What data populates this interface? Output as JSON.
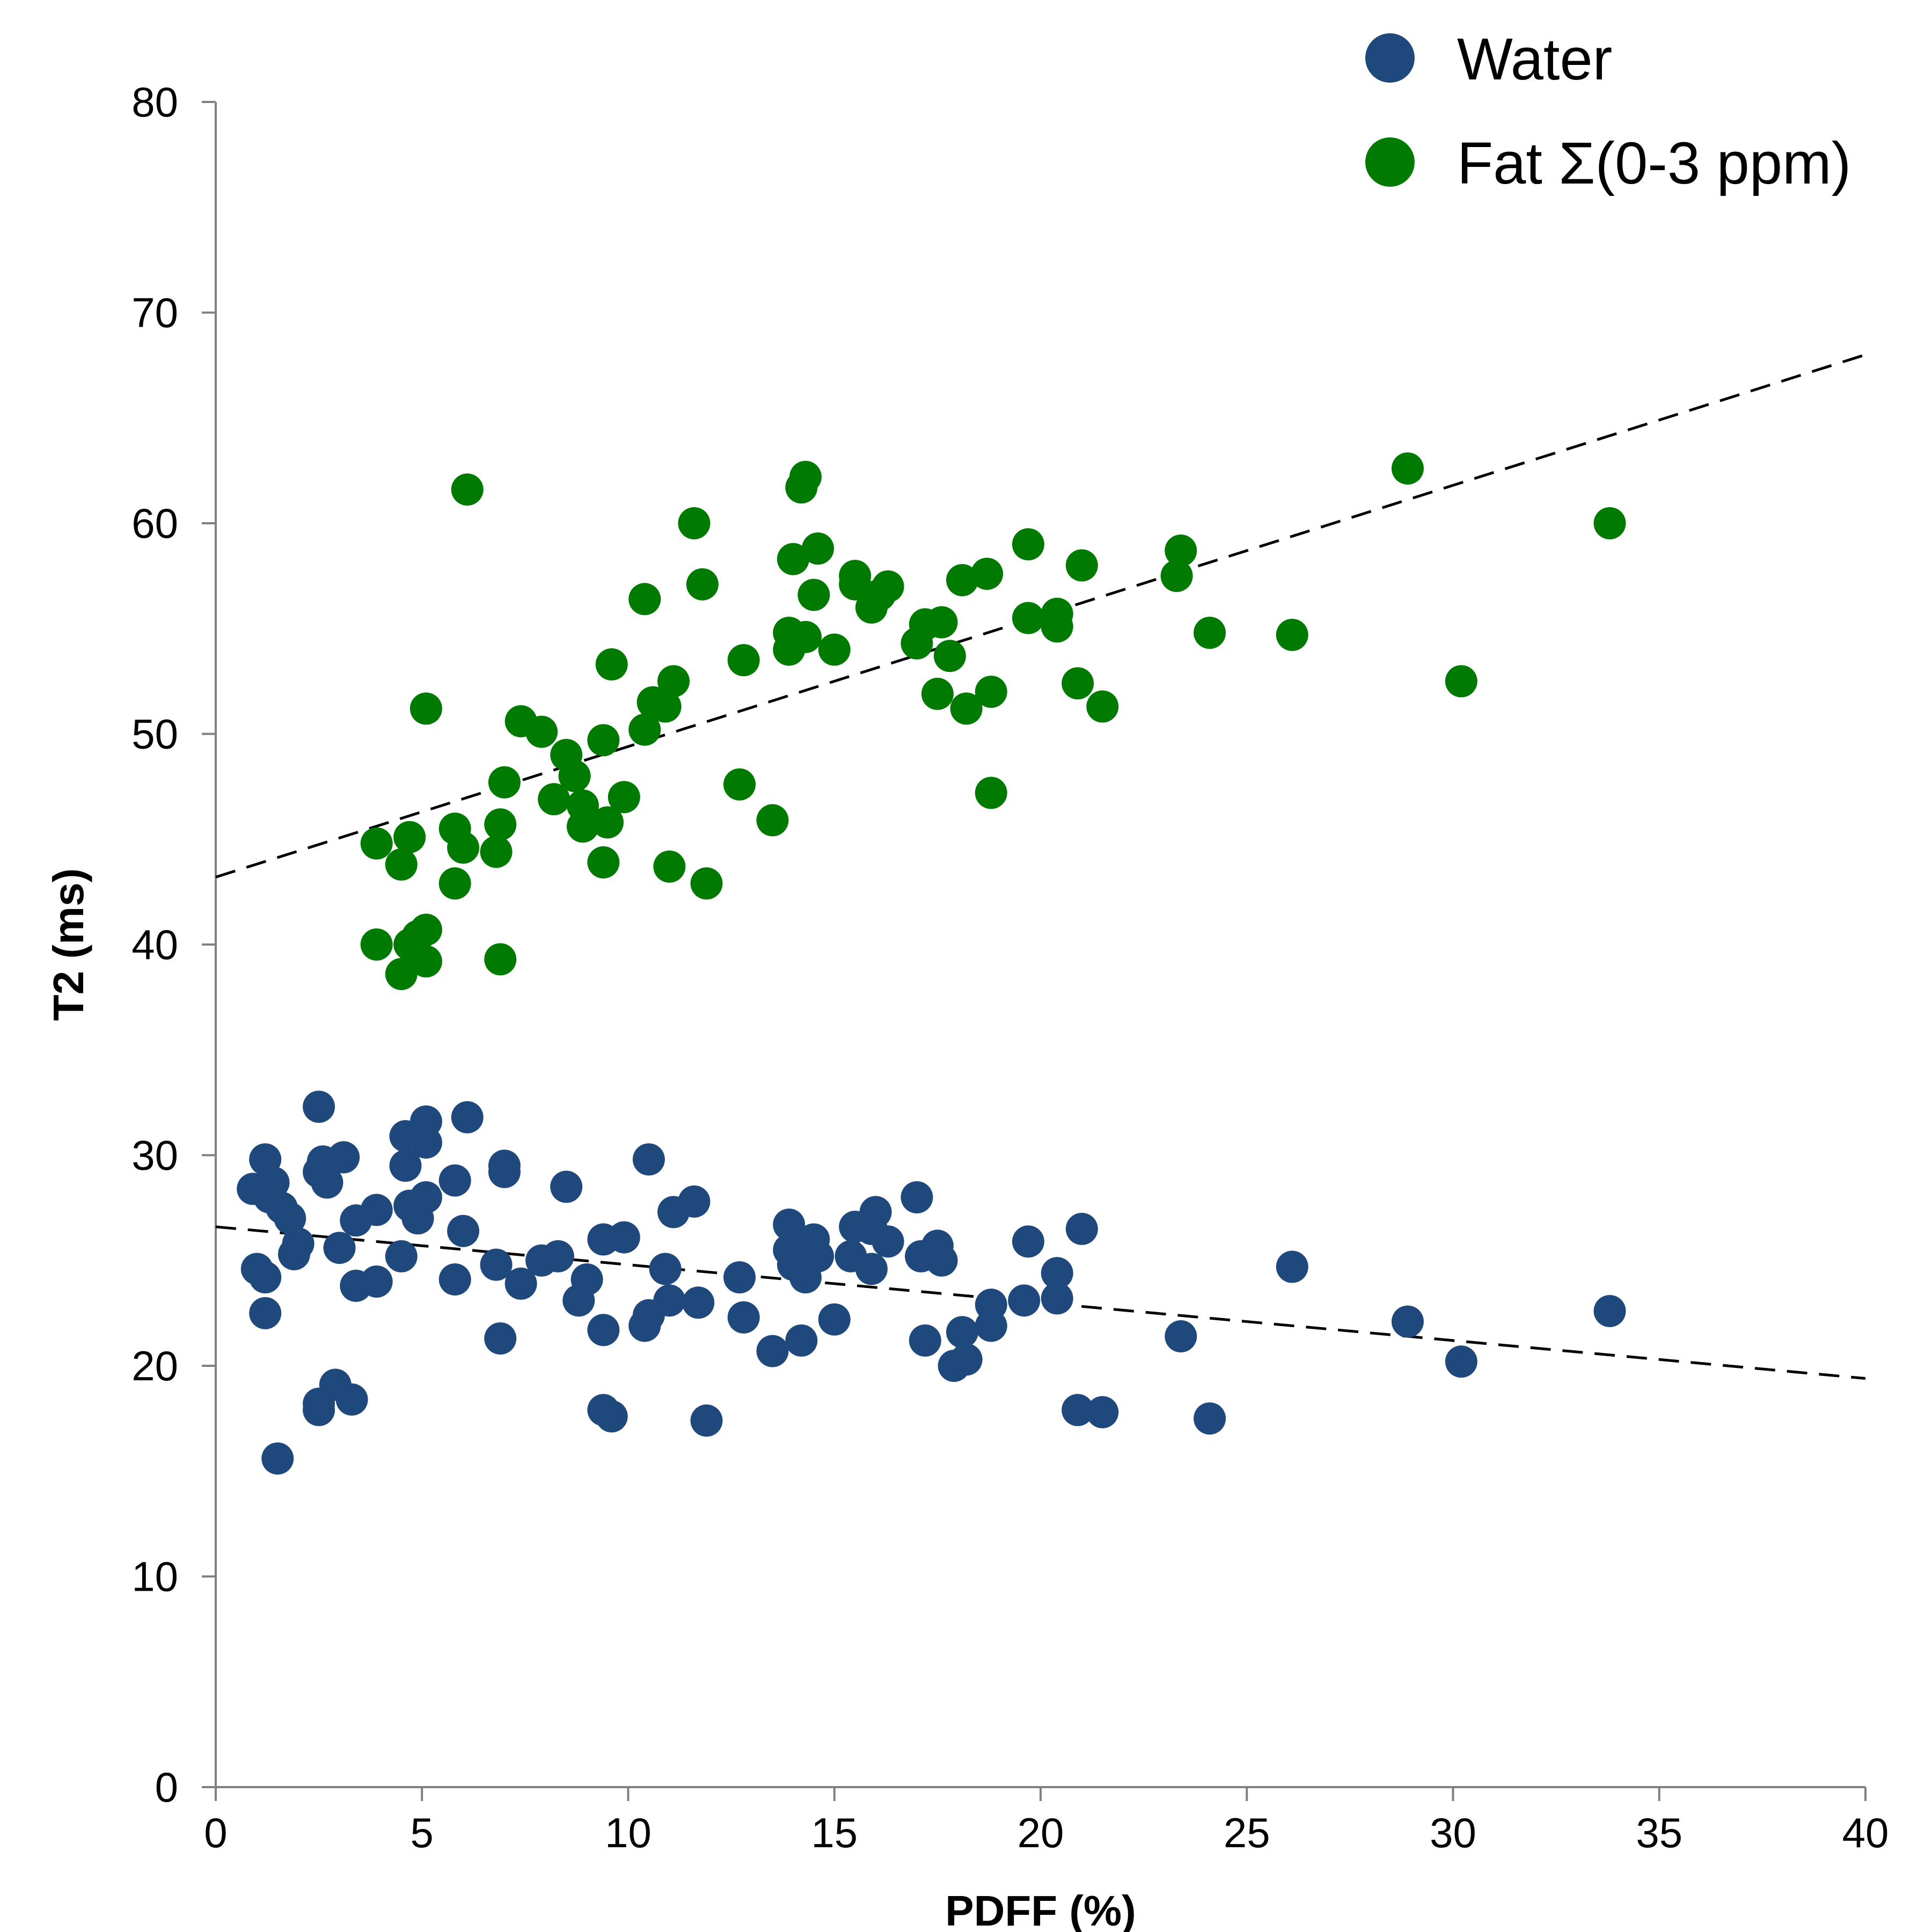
{
  "chart_data": {
    "type": "scatter",
    "title": "",
    "xlabel": "PDFF (%)",
    "ylabel": "T2 (ms)",
    "xlim": [
      0,
      40
    ],
    "ylim": [
      0,
      80
    ],
    "xticks": [
      0,
      5,
      10,
      15,
      20,
      25,
      30,
      35,
      40
    ],
    "yticks": [
      0,
      10,
      20,
      30,
      40,
      50,
      60,
      70,
      80
    ],
    "grid": false,
    "legend_position": "top-right",
    "series": [
      {
        "name": "Water",
        "color": "#1f497d",
        "points": [
          [
            0.9,
            28.4
          ],
          [
            1.2,
            29.8
          ],
          [
            1.4,
            28.7
          ],
          [
            1.6,
            27.5
          ],
          [
            1.8,
            27.0
          ],
          [
            1.3,
            28.0
          ],
          [
            1.0,
            24.6
          ],
          [
            1.2,
            24.2
          ],
          [
            1.9,
            25.3
          ],
          [
            2.0,
            25.8
          ],
          [
            1.2,
            22.5
          ],
          [
            1.5,
            15.6
          ],
          [
            2.5,
            32.3
          ],
          [
            2.6,
            29.7
          ],
          [
            2.5,
            29.2
          ],
          [
            2.7,
            28.7
          ],
          [
            3.1,
            29.9
          ],
          [
            3.0,
            25.6
          ],
          [
            3.4,
            26.9
          ],
          [
            3.9,
            27.4
          ],
          [
            3.4,
            23.8
          ],
          [
            3.9,
            24.0
          ],
          [
            2.9,
            19.1
          ],
          [
            2.5,
            18.2
          ],
          [
            2.5,
            17.9
          ],
          [
            3.3,
            18.4
          ],
          [
            4.6,
            30.9
          ],
          [
            5.1,
            31.6
          ],
          [
            5.1,
            30.6
          ],
          [
            4.6,
            29.5
          ],
          [
            4.7,
            27.6
          ],
          [
            5.1,
            28.0
          ],
          [
            4.9,
            27.0
          ],
          [
            4.5,
            25.2
          ],
          [
            5.8,
            28.8
          ],
          [
            6.1,
            31.8
          ],
          [
            6.0,
            26.4
          ],
          [
            5.8,
            24.1
          ],
          [
            7.0,
            29.5
          ],
          [
            7.0,
            29.2
          ],
          [
            6.8,
            24.8
          ],
          [
            7.4,
            23.9
          ],
          [
            6.9,
            21.3
          ],
          [
            7.9,
            25.0
          ],
          [
            8.3,
            25.2
          ],
          [
            8.5,
            28.5
          ],
          [
            9.0,
            24.1
          ],
          [
            8.8,
            23.1
          ],
          [
            9.4,
            26.0
          ],
          [
            9.9,
            26.1
          ],
          [
            9.4,
            21.7
          ],
          [
            9.4,
            17.9
          ],
          [
            9.6,
            17.6
          ],
          [
            10.5,
            29.8
          ],
          [
            10.9,
            24.6
          ],
          [
            10.5,
            22.4
          ],
          [
            10.4,
            21.9
          ],
          [
            11.0,
            23.1
          ],
          [
            11.1,
            27.3
          ],
          [
            11.6,
            27.8
          ],
          [
            11.7,
            23.0
          ],
          [
            11.9,
            17.4
          ],
          [
            12.7,
            24.2
          ],
          [
            12.8,
            22.3
          ],
          [
            13.5,
            20.7
          ],
          [
            13.9,
            26.7
          ],
          [
            13.9,
            25.5
          ],
          [
            14.0,
            24.8
          ],
          [
            14.3,
            24.2
          ],
          [
            14.5,
            26.0
          ],
          [
            14.6,
            25.2
          ],
          [
            14.2,
            21.2
          ],
          [
            15.5,
            26.6
          ],
          [
            15.4,
            25.2
          ],
          [
            15.9,
            24.6
          ],
          [
            16.0,
            27.3
          ],
          [
            16.3,
            25.9
          ],
          [
            15.9,
            26.5
          ],
          [
            15.0,
            22.2
          ],
          [
            17.0,
            28.0
          ],
          [
            17.1,
            25.2
          ],
          [
            17.5,
            25.7
          ],
          [
            17.6,
            25.0
          ],
          [
            17.2,
            21.2
          ],
          [
            17.9,
            20.0
          ],
          [
            18.2,
            20.3
          ],
          [
            18.1,
            21.6
          ],
          [
            18.8,
            22.9
          ],
          [
            18.8,
            21.9
          ],
          [
            19.7,
            25.9
          ],
          [
            19.6,
            23.1
          ],
          [
            20.4,
            24.4
          ],
          [
            20.4,
            23.2
          ],
          [
            21.0,
            26.5
          ],
          [
            20.9,
            17.9
          ],
          [
            21.5,
            17.8
          ],
          [
            23.4,
            21.4
          ],
          [
            24.1,
            17.5
          ],
          [
            26.1,
            24.7
          ],
          [
            28.9,
            22.1
          ],
          [
            30.2,
            20.2
          ],
          [
            33.8,
            22.6
          ]
        ],
        "trendline": {
          "x": [
            0,
            40
          ],
          "y": [
            26.6,
            19.4
          ]
        }
      },
      {
        "name": "Fat Σ(0-3 ppm)",
        "color": "#007a00",
        "points": [
          [
            3.9,
            44.8
          ],
          [
            3.9,
            40.0
          ],
          [
            4.5,
            43.8
          ],
          [
            4.7,
            45.1
          ],
          [
            4.7,
            40.0
          ],
          [
            4.5,
            38.6
          ],
          [
            4.9,
            40.4
          ],
          [
            5.1,
            40.7
          ],
          [
            5.1,
            39.2
          ],
          [
            5.1,
            51.2
          ],
          [
            5.8,
            45.5
          ],
          [
            6.0,
            44.6
          ],
          [
            5.8,
            42.9
          ],
          [
            6.1,
            61.6
          ],
          [
            7.0,
            47.7
          ],
          [
            6.9,
            45.7
          ],
          [
            6.8,
            44.4
          ],
          [
            6.9,
            39.3
          ],
          [
            7.4,
            50.6
          ],
          [
            7.9,
            50.1
          ],
          [
            8.2,
            46.9
          ],
          [
            8.5,
            49.0
          ],
          [
            8.7,
            48.0
          ],
          [
            8.9,
            46.6
          ],
          [
            8.9,
            45.6
          ],
          [
            9.4,
            49.7
          ],
          [
            9.5,
            45.8
          ],
          [
            9.4,
            43.9
          ],
          [
            9.6,
            53.3
          ],
          [
            9.9,
            47.0
          ],
          [
            10.4,
            50.2
          ],
          [
            10.4,
            56.4
          ],
          [
            10.6,
            51.5
          ],
          [
            10.9,
            51.3
          ],
          [
            11.1,
            52.5
          ],
          [
            11.0,
            43.7
          ],
          [
            11.6,
            60.0
          ],
          [
            11.8,
            57.1
          ],
          [
            11.9,
            42.9
          ],
          [
            12.8,
            53.5
          ],
          [
            12.7,
            47.6
          ],
          [
            13.5,
            45.9
          ],
          [
            14.0,
            58.3
          ],
          [
            13.9,
            54.8
          ],
          [
            13.9,
            54.0
          ],
          [
            14.3,
            54.6
          ],
          [
            14.2,
            61.7
          ],
          [
            14.3,
            62.2
          ],
          [
            14.6,
            58.8
          ],
          [
            14.5,
            56.6
          ],
          [
            15.0,
            54.0
          ],
          [
            15.5,
            57.5
          ],
          [
            15.5,
            57.1
          ],
          [
            15.9,
            56.0
          ],
          [
            16.1,
            56.6
          ],
          [
            16.3,
            57.0
          ],
          [
            17.0,
            54.3
          ],
          [
            17.2,
            55.2
          ],
          [
            17.6,
            55.3
          ],
          [
            17.8,
            53.7
          ],
          [
            17.5,
            51.9
          ],
          [
            18.1,
            57.3
          ],
          [
            18.7,
            57.6
          ],
          [
            18.2,
            51.2
          ],
          [
            18.8,
            52.0
          ],
          [
            18.8,
            47.2
          ],
          [
            19.7,
            59.0
          ],
          [
            19.7,
            55.5
          ],
          [
            20.4,
            55.7
          ],
          [
            20.4,
            55.1
          ],
          [
            21.0,
            58.0
          ],
          [
            20.9,
            52.4
          ],
          [
            21.5,
            51.3
          ],
          [
            23.4,
            58.7
          ],
          [
            23.3,
            57.5
          ],
          [
            24.1,
            54.8
          ],
          [
            26.1,
            54.7
          ],
          [
            28.9,
            62.6
          ],
          [
            30.2,
            52.5
          ],
          [
            33.8,
            60.0
          ]
        ],
        "trendline": {
          "x": [
            0,
            40
          ],
          "y": [
            43.2,
            68.0
          ]
        }
      }
    ]
  }
}
